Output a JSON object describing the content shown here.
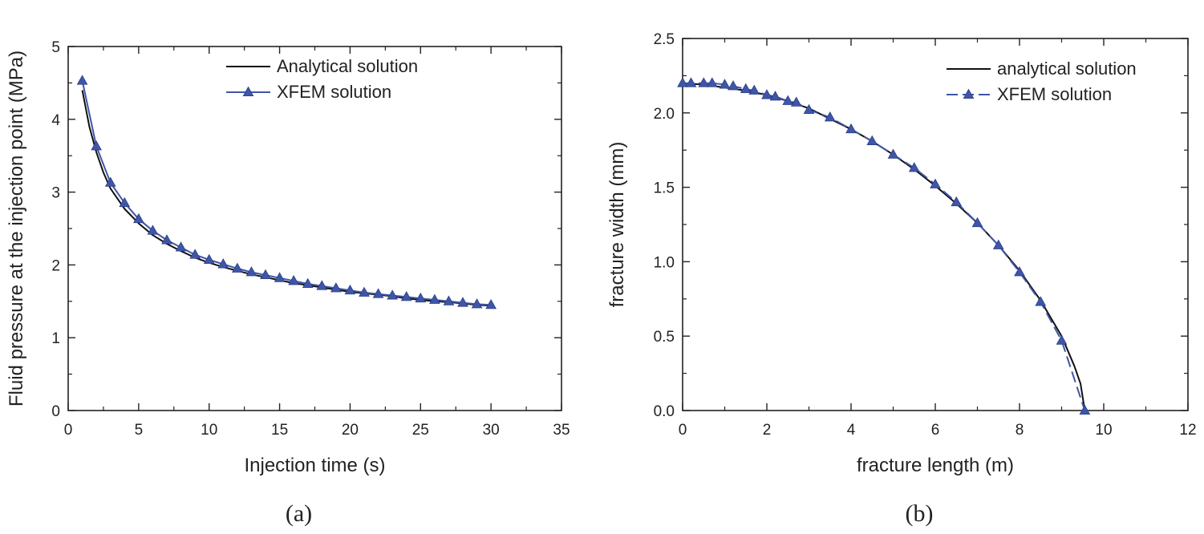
{
  "chart_data": [
    {
      "type": "line",
      "panel_label": "(a)",
      "xlabel": "Injection time (s)",
      "ylabel": "Fluid pressure at the injection point (MPa)",
      "xlim": [
        0,
        35
      ],
      "ylim": [
        0,
        5
      ],
      "xticks": [
        0,
        5,
        10,
        15,
        20,
        25,
        30,
        35
      ],
      "yticks": [
        0,
        1,
        2,
        3,
        4,
        5
      ],
      "xtick_labels": [
        "0",
        "5",
        "10",
        "15",
        "20",
        "25",
        "30",
        "35"
      ],
      "ytick_labels": [
        "0",
        "1",
        "2",
        "3",
        "4",
        "5"
      ],
      "legend_position": "top-right",
      "series": [
        {
          "name": "Analytical solution",
          "style": "solid",
          "marker": "none",
          "color": "#111111",
          "x": [
            1,
            1.5,
            2,
            2.5,
            3,
            4,
            5,
            6,
            7,
            8,
            9,
            10,
            11,
            12,
            13,
            14,
            15,
            16,
            17,
            18,
            19,
            20,
            21,
            22,
            23,
            24,
            25,
            26,
            27,
            28,
            29,
            30
          ],
          "y": [
            4.4,
            3.9,
            3.55,
            3.27,
            3.05,
            2.77,
            2.57,
            2.41,
            2.29,
            2.19,
            2.1,
            2.03,
            1.97,
            1.92,
            1.87,
            1.83,
            1.79,
            1.75,
            1.72,
            1.69,
            1.66,
            1.63,
            1.61,
            1.59,
            1.57,
            1.54,
            1.52,
            1.5,
            1.49,
            1.47,
            1.45,
            1.44
          ]
        },
        {
          "name": "XFEM solution",
          "style": "solid",
          "marker": "triangle",
          "color": "#3f56a8",
          "x": [
            1,
            2,
            3,
            4,
            5,
            6,
            7,
            8,
            9,
            10,
            11,
            12,
            13,
            14,
            15,
            16,
            17,
            18,
            19,
            20,
            21,
            22,
            23,
            24,
            25,
            26,
            27,
            28,
            29,
            30
          ],
          "y": [
            4.53,
            3.63,
            3.13,
            2.85,
            2.63,
            2.47,
            2.34,
            2.24,
            2.14,
            2.07,
            2.01,
            1.95,
            1.9,
            1.86,
            1.82,
            1.78,
            1.74,
            1.71,
            1.68,
            1.65,
            1.62,
            1.6,
            1.58,
            1.56,
            1.54,
            1.52,
            1.5,
            1.48,
            1.46,
            1.45
          ]
        }
      ]
    },
    {
      "type": "line",
      "panel_label": "(b)",
      "xlabel": "fracture length (m)",
      "ylabel": "fracture width (mm)",
      "xlim": [
        0,
        12
      ],
      "ylim": [
        0,
        2.5
      ],
      "xticks": [
        0,
        2,
        4,
        6,
        8,
        10,
        12
      ],
      "yticks": [
        0,
        0.5,
        1.0,
        1.5,
        2.0,
        2.5
      ],
      "xtick_labels": [
        "0",
        "2",
        "4",
        "6",
        "8",
        "10",
        "12"
      ],
      "ytick_labels": [
        "0.0",
        "0.5",
        "1.0",
        "1.5",
        "2.0",
        "2.5"
      ],
      "legend_position": "top-right",
      "series": [
        {
          "name": "analytical solution",
          "style": "solid",
          "marker": "none",
          "color": "#111111",
          "x": [
            0,
            0.5,
            1,
            1.5,
            2,
            2.5,
            3,
            3.5,
            4,
            4.5,
            5,
            5.5,
            6,
            6.5,
            7,
            7.5,
            8,
            8.5,
            9,
            9.3,
            9.45,
            9.55
          ],
          "y": [
            2.2,
            2.19,
            2.17,
            2.15,
            2.12,
            2.08,
            2.03,
            1.96,
            1.89,
            1.81,
            1.72,
            1.62,
            1.51,
            1.39,
            1.26,
            1.11,
            0.94,
            0.74,
            0.5,
            0.3,
            0.18,
            0.0
          ]
        },
        {
          "name": "XFEM solution",
          "style": "dashed",
          "marker": "triangle",
          "color": "#3f56a8",
          "x": [
            0,
            0.2,
            0.5,
            0.7,
            1.0,
            1.2,
            1.5,
            1.7,
            2.0,
            2.2,
            2.5,
            2.7,
            3.0,
            3.5,
            4.0,
            4.5,
            5.0,
            5.5,
            6.0,
            6.5,
            7.0,
            7.5,
            8.0,
            8.5,
            9.0,
            9.55
          ],
          "y": [
            2.2,
            2.2,
            2.2,
            2.2,
            2.19,
            2.18,
            2.16,
            2.15,
            2.12,
            2.11,
            2.08,
            2.07,
            2.02,
            1.97,
            1.89,
            1.81,
            1.72,
            1.63,
            1.52,
            1.4,
            1.26,
            1.11,
            0.93,
            0.73,
            0.47,
            0.0
          ]
        }
      ]
    }
  ]
}
